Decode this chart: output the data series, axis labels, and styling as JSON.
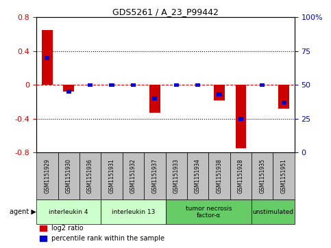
{
  "title": "GDS5261 / A_23_P99442",
  "samples": [
    "GSM1151929",
    "GSM1151930",
    "GSM1151936",
    "GSM1151931",
    "GSM1151932",
    "GSM1151937",
    "GSM1151933",
    "GSM1151934",
    "GSM1151938",
    "GSM1151928",
    "GSM1151935",
    "GSM1151951"
  ],
  "log2_ratio": [
    0.65,
    -0.08,
    0.0,
    0.0,
    0.0,
    -0.33,
    0.0,
    0.0,
    -0.18,
    -0.75,
    0.0,
    -0.28
  ],
  "percentile_rank": [
    70,
    45,
    50,
    50,
    50,
    40,
    50,
    50,
    43,
    25,
    50,
    37
  ],
  "agents": [
    {
      "label": "interleukin 4",
      "start": 0,
      "end": 2,
      "color": "#ccffcc"
    },
    {
      "label": "interleukin 13",
      "start": 3,
      "end": 5,
      "color": "#ccffcc"
    },
    {
      "label": "tumor necrosis\nfactor-α",
      "start": 6,
      "end": 9,
      "color": "#66cc66"
    },
    {
      "label": "unstimulated",
      "start": 10,
      "end": 11,
      "color": "#66cc66"
    }
  ],
  "ylim_left": [
    -0.8,
    0.8
  ],
  "ylim_right": [
    0,
    100
  ],
  "yticks_left": [
    -0.8,
    -0.4,
    0.0,
    0.4,
    0.8
  ],
  "yticks_right": [
    0,
    25,
    50,
    75,
    100
  ],
  "bar_width": 0.5,
  "red_color": "#cc0000",
  "blue_color": "#0000cc",
  "legend_red": "log2 ratio",
  "legend_blue": "percentile rank within the sample",
  "background_color": "#ffffff",
  "gray_sample_color": "#c0c0c0",
  "agent_light_color": "#ccffcc",
  "agent_dark_color": "#66cc66"
}
